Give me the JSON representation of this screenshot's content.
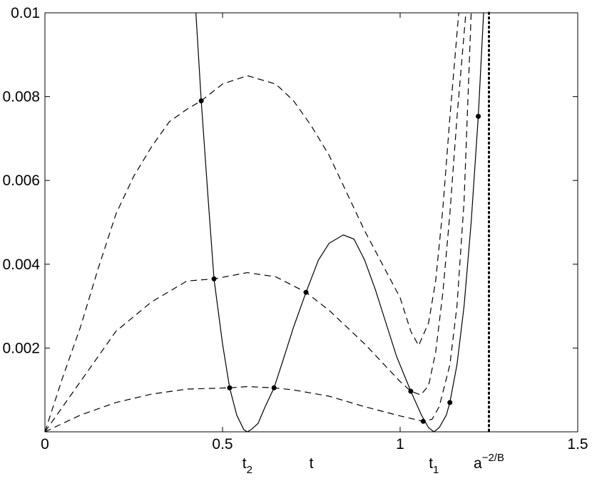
{
  "chart_data": {
    "type": "line",
    "xlim": [
      0,
      1.5
    ],
    "ylim": [
      0,
      0.01
    ],
    "xticks": [
      0,
      0.5,
      1,
      1.5
    ],
    "yticks": [
      0.002,
      0.004,
      0.006,
      0.008,
      0.01
    ],
    "series": [
      {
        "style": "solid",
        "color": "#000000",
        "x": [
          0.425,
          0.44,
          0.46,
          0.476,
          0.5,
          0.52,
          0.54,
          0.56,
          0.57,
          0.58,
          0.6,
          0.62,
          0.645,
          0.67,
          0.7,
          0.735,
          0.77,
          0.8,
          0.84,
          0.87,
          0.9,
          0.93,
          0.96,
          0.99,
          1.03,
          1.06,
          1.08,
          1.095,
          1.11,
          1.13,
          1.14,
          1.16,
          1.18,
          1.2,
          1.22,
          1.235
        ],
        "values": [
          0.01,
          0.0079,
          0.0055,
          0.00365,
          0.0021,
          0.00105,
          0.0004,
          5e-05,
          0,
          5e-05,
          0.0002,
          0.0006,
          0.00105,
          0.0017,
          0.0025,
          0.00333,
          0.0041,
          0.0045,
          0.0047,
          0.0046,
          0.0041,
          0.0034,
          0.0026,
          0.0018,
          0.00097,
          0.0004,
          0.0001,
          0,
          0.0001,
          0.0004,
          0.0007,
          0.0016,
          0.003,
          0.005,
          0.00753,
          0.01
        ]
      },
      {
        "style": "dashed",
        "color": "#000000",
        "x": [
          0,
          0.05,
          0.1,
          0.15,
          0.2,
          0.25,
          0.3,
          0.35,
          0.4,
          0.44,
          0.5,
          0.57,
          0.65,
          0.7,
          0.75,
          0.8,
          0.85,
          0.9,
          0.95,
          1.0,
          1.03,
          1.052,
          1.08,
          1.1,
          1.12,
          1.14,
          1.165
        ],
        "values": [
          0,
          0.0013,
          0.0025,
          0.0039,
          0.0052,
          0.0061,
          0.0068,
          0.0074,
          0.0077,
          0.0079,
          0.0083,
          0.0085,
          0.0083,
          0.0079,
          0.0073,
          0.0066,
          0.0057,
          0.0048,
          0.004,
          0.0032,
          0.0024,
          0.00206,
          0.0026,
          0.0036,
          0.0053,
          0.0075,
          0.01
        ]
      },
      {
        "style": "dashed",
        "color": "#000000",
        "x": [
          0,
          0.05,
          0.1,
          0.2,
          0.3,
          0.4,
          0.476,
          0.57,
          0.65,
          0.735,
          0.8,
          0.9,
          1.0,
          1.03,
          1.058,
          1.08,
          1.1,
          1.12,
          1.14,
          1.16,
          1.185
        ],
        "values": [
          0,
          0.0006,
          0.0012,
          0.0024,
          0.0031,
          0.0036,
          0.00365,
          0.0038,
          0.0037,
          0.00333,
          0.0029,
          0.0021,
          0.0012,
          0.00097,
          0.00088,
          0.0011,
          0.0019,
          0.0033,
          0.0052,
          0.0075,
          0.01
        ]
      },
      {
        "style": "dashed",
        "color": "#000000",
        "x": [
          0,
          0.1,
          0.2,
          0.3,
          0.4,
          0.52,
          0.57,
          0.645,
          0.7,
          0.8,
          0.9,
          1.0,
          1.065,
          1.09,
          1.11,
          1.14,
          1.16,
          1.18,
          1.2
        ],
        "values": [
          0,
          0.0004,
          0.0007,
          0.0009,
          0.00102,
          0.00105,
          0.00108,
          0.00105,
          0.001,
          0.00085,
          0.0006,
          0.00038,
          0.00025,
          0.0003,
          0.0006,
          0.0016,
          0.003,
          0.0055,
          0.01
        ]
      }
    ],
    "points": {
      "color": "#000000",
      "x": [
        0.44,
        0.476,
        0.52,
        0.645,
        0.735,
        1.03,
        1.065,
        1.14,
        1.22
      ],
      "y": [
        0.0079,
        0.00365,
        0.00105,
        0.00105,
        0.00333,
        0.00097,
        0.00025,
        0.0007,
        0.00753
      ]
    },
    "vline": 1.25,
    "annotations": [
      {
        "text": "t",
        "sub": "2",
        "x": 0.57
      },
      {
        "text": "t",
        "x": 0.75
      },
      {
        "text": "t",
        "sub": "1",
        "x": 1.095
      },
      {
        "text": "a",
        "sup": "−2/B",
        "x": 1.25
      }
    ]
  }
}
